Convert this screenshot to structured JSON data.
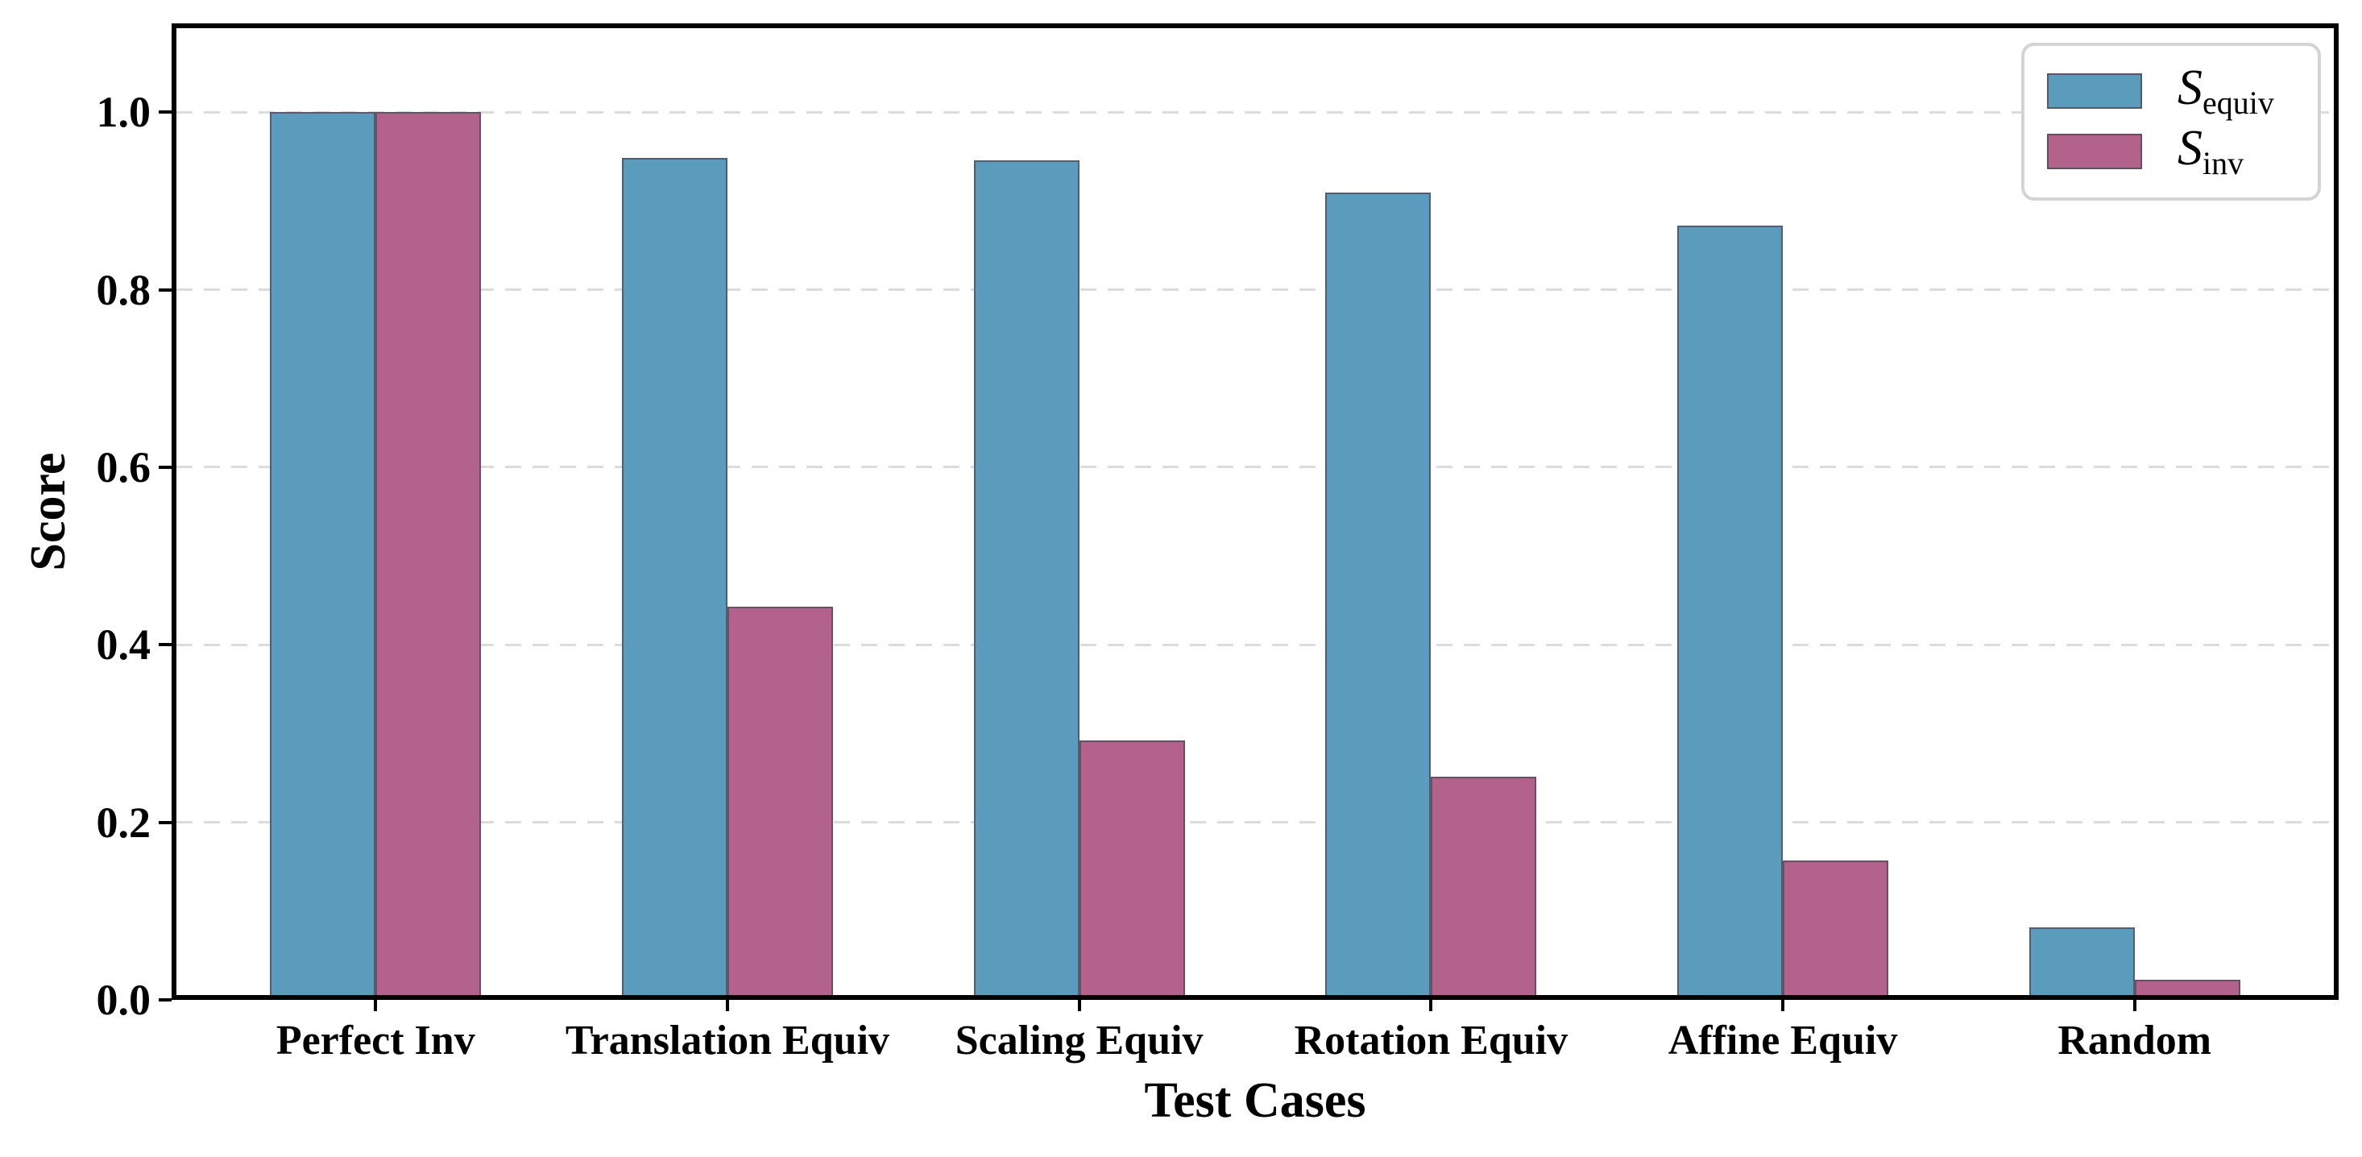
{
  "figure": {
    "background": "#ffffff",
    "frame_color": "#000000",
    "grid_color": "#dcdcdc",
    "legend_border_color": "#d4d4d4",
    "bar_edge_color": "#4d4a57"
  },
  "chart_data": {
    "type": "bar",
    "title": "",
    "xlabel": "Test Cases",
    "ylabel": "Score",
    "categories": [
      "Perfect Inv",
      "Translation Equiv",
      "Scaling Equiv",
      "Rotation Equiv",
      "Affine Equiv",
      "Random"
    ],
    "series": [
      {
        "name": "S_equiv",
        "symbol": "S",
        "subscript": "equiv",
        "color": "#5B9CBC",
        "values": [
          1.0,
          0.948,
          0.946,
          0.909,
          0.872,
          0.082
        ]
      },
      {
        "name": "S_inv",
        "symbol": "S",
        "subscript": "inv",
        "color": "#B2628B",
        "values": [
          1.0,
          0.443,
          0.292,
          0.251,
          0.157,
          0.023
        ]
      }
    ],
    "yticks": [
      0.0,
      0.2,
      0.4,
      0.6,
      0.8,
      1.0
    ],
    "ytick_labels": [
      "0.0",
      "0.2",
      "0.4",
      "0.6",
      "0.8",
      "1.0"
    ],
    "ylim": [
      0,
      1.1
    ],
    "xlim": [
      -0.58,
      5.58
    ],
    "bar_width": 0.3,
    "grid": "horizontal-dashed",
    "legend_position": "upper-right"
  }
}
